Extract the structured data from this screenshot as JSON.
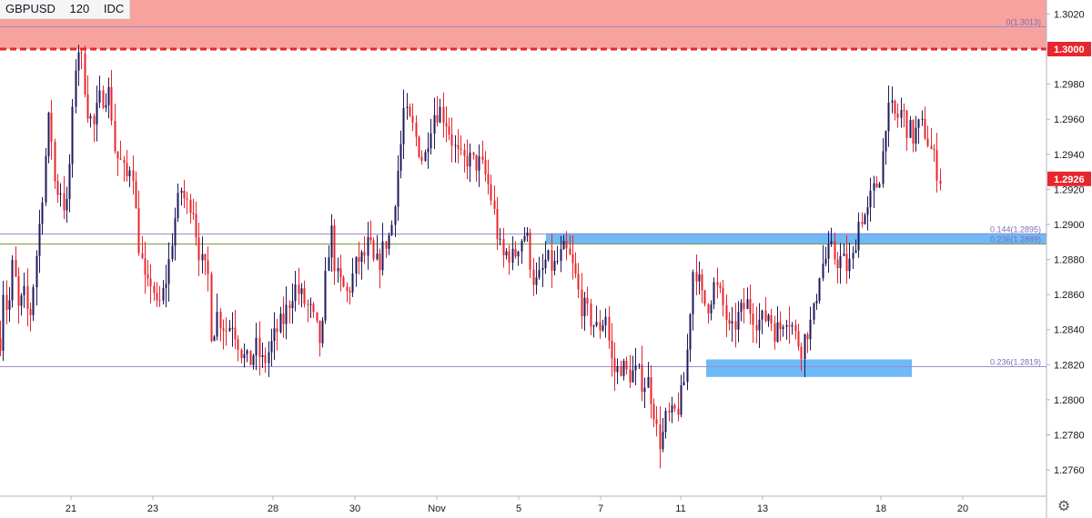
{
  "header": {
    "symbol": "GBPUSD",
    "interval": "120",
    "source": "IDC"
  },
  "colors": {
    "up": "#1e1a5c",
    "down": "#e8262c",
    "resistance_zone": "#f7a29d",
    "round_level_line": "#e8262c",
    "support_zone": "#6fb9f7",
    "fib_line": "#9a8ccb",
    "fib_line_alt": "#7f9a3c",
    "fib_label": "#7e6bb7",
    "last_price_tag": "#e8262c"
  },
  "icons": {
    "settings": "gear-icon"
  },
  "chart_data": {
    "type": "candlestick",
    "title": "",
    "xlabel": "",
    "ylabel": "",
    "ylim": [
      1.2745,
      1.3028
    ],
    "grid": false,
    "y_ticks": [
      "1.2760",
      "1.2780",
      "1.2800",
      "1.2820",
      "1.2840",
      "1.2860",
      "1.2880",
      "1.2900",
      "1.2920",
      "1.2940",
      "1.2960",
      "1.2980",
      "1.3000",
      "1.3020"
    ],
    "x_ticks": [
      "21",
      "23",
      "28",
      "30",
      "Nov",
      "5",
      "7",
      "11",
      "13",
      "18",
      "20"
    ],
    "last_price": {
      "value": 1.2926,
      "label": "1.2926"
    },
    "round_level": {
      "value": 1.3,
      "label": "1.3000"
    },
    "fib_levels": [
      {
        "value": 1.3013,
        "label": "0(1.3013)"
      },
      {
        "value": 1.2895,
        "label": "0.144(1.2895)"
      },
      {
        "value": 1.2889,
        "label": "0.236(1.2889)"
      },
      {
        "value": 1.2819,
        "label": "0.236(1.2819)"
      }
    ],
    "zones": [
      {
        "name": "resistance",
        "from": 1.3,
        "to": 1.303
      },
      {
        "name": "support-upper",
        "from": 1.2889,
        "to": 1.2895
      },
      {
        "name": "support-lower",
        "from": 1.2813,
        "to": 1.2823
      }
    ],
    "path": [
      [
        0,
        1.2835
      ],
      [
        4,
        1.287
      ],
      [
        8,
        1.2845
      ],
      [
        14,
        1.288
      ],
      [
        20,
        1.285
      ],
      [
        26,
        1.286
      ],
      [
        32,
        1.2845
      ],
      [
        38,
        1.2875
      ],
      [
        44,
        1.2905
      ],
      [
        48,
        1.293
      ],
      [
        54,
        1.2965
      ],
      [
        60,
        1.292
      ],
      [
        66,
        1.292
      ],
      [
        72,
        1.2905
      ],
      [
        78,
        1.295
      ],
      [
        84,
        1.3005
      ],
      [
        90,
        1.299
      ],
      [
        96,
        1.2965
      ],
      [
        102,
        1.2955
      ],
      [
        108,
        1.297
      ],
      [
        114,
        1.2975
      ],
      [
        120,
        1.2975
      ],
      [
        126,
        1.294
      ],
      [
        132,
        1.2935
      ],
      [
        138,
        1.2925
      ],
      [
        144,
        1.294
      ],
      [
        150,
        1.2895
      ],
      [
        156,
        1.2875
      ],
      [
        160,
        1.286
      ],
      [
        166,
        1.287
      ],
      [
        172,
        1.285
      ],
      [
        178,
        1.286
      ],
      [
        184,
        1.2875
      ],
      [
        190,
        1.29
      ],
      [
        198,
        1.292
      ],
      [
        204,
        1.291
      ],
      [
        210,
        1.2915
      ],
      [
        216,
        1.289
      ],
      [
        222,
        1.2875
      ],
      [
        228,
        1.287
      ],
      [
        232,
        1.283
      ],
      [
        236,
        1.285
      ],
      [
        242,
        1.2845
      ],
      [
        248,
        1.284
      ],
      [
        254,
        1.2845
      ],
      [
        260,
        1.2835
      ],
      [
        266,
        1.2825
      ],
      [
        272,
        1.282
      ],
      [
        280,
        1.283
      ],
      [
        288,
        1.282
      ],
      [
        296,
        1.283
      ],
      [
        304,
        1.284
      ],
      [
        310,
        1.2845
      ],
      [
        316,
        1.2855
      ],
      [
        322,
        1.2865
      ],
      [
        328,
        1.286
      ],
      [
        334,
        1.2855
      ],
      [
        340,
        1.285
      ],
      [
        346,
        1.284
      ],
      [
        352,
        1.283
      ],
      [
        356,
        1.2865
      ],
      [
        362,
        1.29
      ],
      [
        368,
        1.287
      ],
      [
        374,
        1.2865
      ],
      [
        380,
        1.286
      ],
      [
        386,
        1.287
      ],
      [
        392,
        1.288
      ],
      [
        398,
        1.288
      ],
      [
        404,
        1.289
      ],
      [
        410,
        1.2875
      ],
      [
        416,
        1.288
      ],
      [
        422,
        1.289
      ],
      [
        428,
        1.2895
      ],
      [
        434,
        1.2925
      ],
      [
        438,
        1.294
      ],
      [
        442,
        1.2965
      ],
      [
        446,
        1.296
      ],
      [
        452,
        1.2955
      ],
      [
        458,
        1.2945
      ],
      [
        464,
        1.2935
      ],
      [
        470,
        1.2955
      ],
      [
        476,
        1.2965
      ],
      [
        482,
        1.2965
      ],
      [
        488,
        1.296
      ],
      [
        494,
        1.295
      ],
      [
        500,
        1.294
      ],
      [
        506,
        1.2935
      ],
      [
        512,
        1.2938
      ],
      [
        518,
        1.2935
      ],
      [
        524,
        1.2935
      ],
      [
        530,
        1.293
      ],
      [
        536,
        1.292
      ],
      [
        540,
        1.291
      ],
      [
        546,
        1.289
      ],
      [
        550,
        1.288
      ],
      [
        556,
        1.2885
      ],
      [
        562,
        1.288
      ],
      [
        568,
        1.289
      ],
      [
        574,
        1.2895
      ],
      [
        578,
        1.289
      ],
      [
        582,
        1.2875
      ],
      [
        586,
        1.2865
      ],
      [
        592,
        1.287
      ],
      [
        598,
        1.288
      ],
      [
        606,
        1.2875
      ],
      [
        612,
        1.288
      ],
      [
        618,
        1.2885
      ],
      [
        624,
        1.288
      ],
      [
        630,
        1.287
      ],
      [
        636,
        1.2855
      ],
      [
        642,
        1.285
      ],
      [
        648,
        1.2845
      ],
      [
        654,
        1.284
      ],
      [
        660,
        1.2845
      ],
      [
        664,
        1.285
      ],
      [
        668,
        1.2825
      ],
      [
        674,
        1.2815
      ],
      [
        680,
        1.282
      ],
      [
        686,
        1.2815
      ],
      [
        692,
        1.2815
      ],
      [
        698,
        1.2815
      ],
      [
        704,
        1.281
      ],
      [
        710,
        1.281
      ],
      [
        716,
        1.2795
      ],
      [
        720,
        1.278
      ],
      [
        724,
        1.2775
      ],
      [
        730,
        1.279
      ],
      [
        736,
        1.279
      ],
      [
        742,
        1.2795
      ],
      [
        748,
        1.2805
      ],
      [
        752,
        1.2825
      ],
      [
        756,
        1.2855
      ],
      [
        760,
        1.288
      ],
      [
        764,
        1.287
      ],
      [
        770,
        1.2855
      ],
      [
        776,
        1.2855
      ],
      [
        782,
        1.2865
      ],
      [
        788,
        1.286
      ],
      [
        794,
        1.285
      ],
      [
        800,
        1.2835
      ],
      [
        806,
        1.2845
      ],
      [
        812,
        1.285
      ],
      [
        818,
        1.2855
      ],
      [
        824,
        1.285
      ],
      [
        830,
        1.2845
      ],
      [
        836,
        1.2845
      ],
      [
        842,
        1.285
      ],
      [
        848,
        1.284
      ],
      [
        854,
        1.284
      ],
      [
        860,
        1.285
      ],
      [
        866,
        1.2845
      ],
      [
        872,
        1.2835
      ],
      [
        878,
        1.283
      ],
      [
        884,
        1.284
      ],
      [
        890,
        1.2845
      ],
      [
        894,
        1.286
      ],
      [
        898,
        1.2875
      ],
      [
        904,
        1.288
      ],
      [
        910,
        1.2885
      ],
      [
        916,
        1.288
      ],
      [
        922,
        1.288
      ],
      [
        928,
        1.2875
      ],
      [
        934,
        1.288
      ],
      [
        938,
        1.2895
      ],
      [
        942,
        1.2905
      ],
      [
        946,
        1.2905
      ],
      [
        950,
        1.2905
      ],
      [
        954,
        1.2915
      ],
      [
        958,
        1.292
      ],
      [
        962,
        1.2925
      ],
      [
        966,
        1.2935
      ],
      [
        970,
        1.296
      ],
      [
        976,
        1.2965
      ],
      [
        982,
        1.296
      ],
      [
        988,
        1.2965
      ],
      [
        994,
        1.2955
      ],
      [
        1000,
        1.295
      ],
      [
        1006,
        1.2955
      ],
      [
        1012,
        1.2955
      ],
      [
        1018,
        1.2945
      ],
      [
        1024,
        1.2935
      ],
      [
        1030,
        1.2926
      ]
    ]
  }
}
